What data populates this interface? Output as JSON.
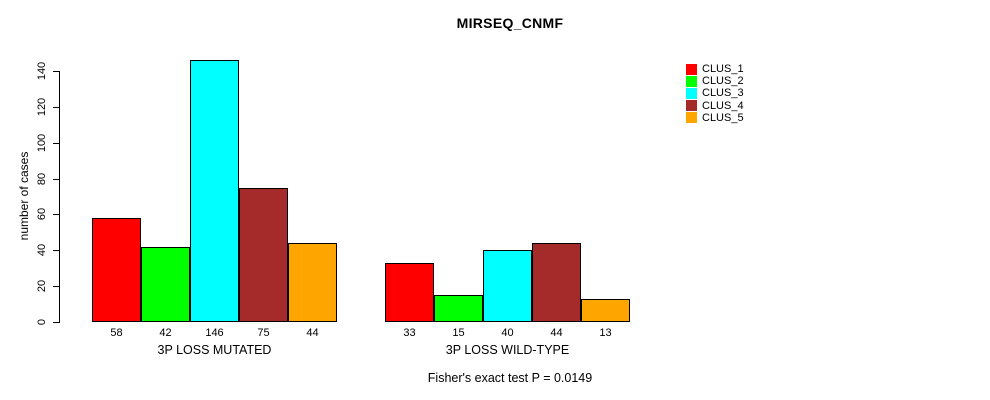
{
  "chart_data": {
    "type": "bar",
    "title": "MIRSEQ_CNMF",
    "xlabel": "",
    "ylabel": "number of cases",
    "categories": [
      "3P LOSS MUTATED",
      "3P LOSS WILD-TYPE"
    ],
    "series": [
      {
        "name": "CLUS_1",
        "color": "#FF0000",
        "values": [
          58,
          33
        ]
      },
      {
        "name": "CLUS_2",
        "color": "#00FF00",
        "values": [
          42,
          15
        ]
      },
      {
        "name": "CLUS_3",
        "color": "#00FFFF",
        "values": [
          146,
          40
        ]
      },
      {
        "name": "CLUS_4",
        "color": "#A52A2A",
        "values": [
          75,
          44
        ]
      },
      {
        "name": "CLUS_5",
        "color": "#FFA500",
        "values": [
          44,
          13
        ]
      }
    ],
    "grouping": "beside",
    "bar_value_labels_shown": true,
    "yticks": [
      0,
      20,
      40,
      60,
      80,
      100,
      120,
      140
    ],
    "ylim": [
      0,
      140
    ],
    "grid": false,
    "legend": {
      "position": "top-right",
      "entries": [
        "CLUS_1",
        "CLUS_2",
        "CLUS_3",
        "CLUS_4",
        "CLUS_5"
      ]
    },
    "annotation": "Fisher's exact test P = 0.0149"
  }
}
